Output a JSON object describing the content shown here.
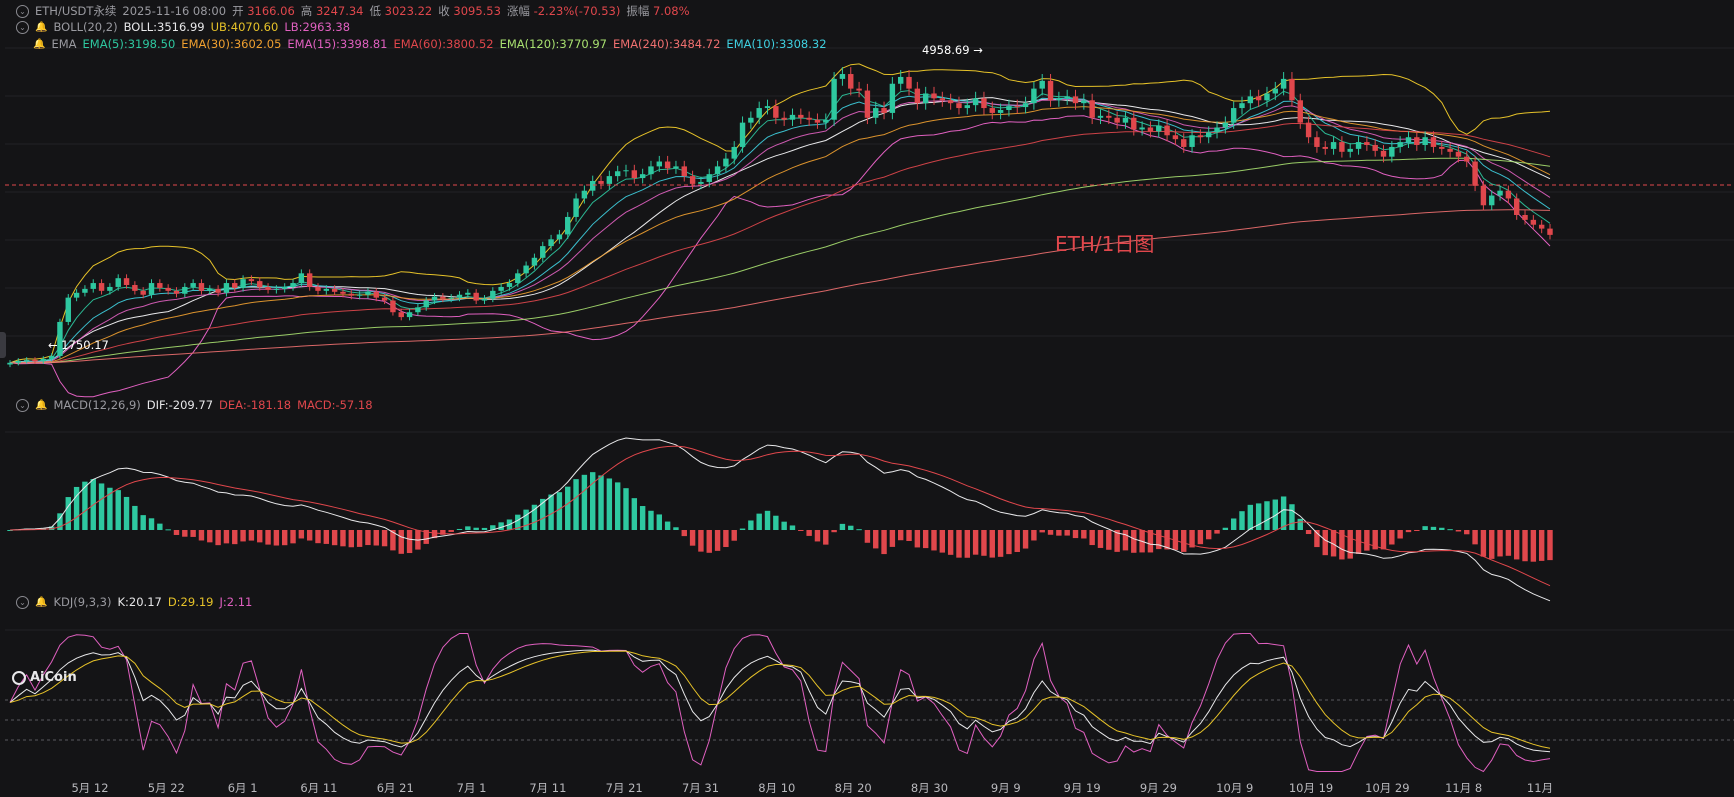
{
  "header": {
    "symbol": "ETH/USDT永续",
    "datetime": "2025-11-16 08:00",
    "open_label": "开",
    "open": "3166.06",
    "high_label": "高",
    "high": "3247.34",
    "low_label": "低",
    "low": "3023.22",
    "close_label": "收",
    "close": "3095.53",
    "change_label": "涨幅",
    "change": "-2.23%(-70.53)",
    "amplitude_label": "振幅",
    "amplitude": "7.08%"
  },
  "boll": {
    "name": "BOLL(20,2)",
    "mid": "BOLL:3516.99",
    "ub": "UB:4070.60",
    "lb": "LB:2963.38"
  },
  "ema": {
    "name": "EMA",
    "items": [
      "EMA(5):3198.50",
      "EMA(30):3602.05",
      "EMA(15):3398.81",
      "EMA(60):3800.52",
      "EMA(120):3770.97",
      "EMA(240):3484.72",
      "EMA(10):3308.32"
    ]
  },
  "macd": {
    "name": "MACD(12,26,9)",
    "dif": "DIF:-209.77",
    "dea": "DEA:-181.18",
    "macd": "MACD:-57.18"
  },
  "kdj": {
    "name": "KDJ(9,3,3)",
    "k": "K:20.17",
    "d": "D:29.19",
    "j": "J:2.11"
  },
  "annotations": {
    "high": "4958.69",
    "low": "1750.17",
    "watermark": "ETH/1日图"
  },
  "logo": "AiCoin",
  "colors": {
    "up": "#2ec8a0",
    "down": "#e0474c",
    "background": "#141416"
  },
  "chart_data": {
    "type": "candlestick",
    "title": "ETH/USDT永续",
    "x_ticks": [
      "5月 12",
      "5月 22",
      "6月 1",
      "6月 11",
      "6月 21",
      "7月 1",
      "7月 11",
      "7月 21",
      "7月 31",
      "8月 10",
      "8月 20",
      "8月 30",
      "9月 9",
      "9月 19",
      "9月 29",
      "10月 9",
      "10月 19",
      "10月 29",
      "11月 8",
      "11月"
    ],
    "close_series": [
      1780,
      1800,
      1810,
      1795,
      1820,
      1850,
      2200,
      2450,
      2500,
      2540,
      2600,
      2520,
      2560,
      2650,
      2580,
      2520,
      2480,
      2600,
      2550,
      2520,
      2490,
      2560,
      2600,
      2520,
      2540,
      2500,
      2600,
      2550,
      2640,
      2620,
      2560,
      2530,
      2540,
      2560,
      2600,
      2700,
      2560,
      2520,
      2540,
      2510,
      2490,
      2470,
      2480,
      2510,
      2450,
      2420,
      2300,
      2250,
      2300,
      2350,
      2420,
      2460,
      2440,
      2450,
      2480,
      2500,
      2420,
      2440,
      2520,
      2560,
      2600,
      2700,
      2780,
      2860,
      2980,
      3050,
      3100,
      3280,
      3470,
      3550,
      3650,
      3620,
      3700,
      3750,
      3760,
      3680,
      3720,
      3800,
      3850,
      3780,
      3800,
      3700,
      3620,
      3640,
      3720,
      3800,
      3880,
      4000,
      4250,
      4300,
      4400,
      4420,
      4300,
      4280,
      4330,
      4300,
      4280,
      4250,
      4280,
      4700,
      4750,
      4600,
      4580,
      4300,
      4400,
      4350,
      4650,
      4720,
      4600,
      4450,
      4550,
      4500,
      4480,
      4450,
      4400,
      4430,
      4500,
      4400,
      4350,
      4380,
      4420,
      4410,
      4450,
      4600,
      4680,
      4480,
      4500,
      4520,
      4450,
      4480,
      4300,
      4320,
      4300,
      4250,
      4300,
      4180,
      4200,
      4160,
      4220,
      4120,
      4080,
      4000,
      4120,
      4100,
      4150,
      4200,
      4250,
      4400,
      4450,
      4520,
      4480,
      4550,
      4600,
      4700,
      4480,
      4250,
      4100,
      4000,
      3980,
      4050,
      3950,
      3980,
      4050,
      4020,
      3960,
      3900,
      4000,
      4050,
      4100,
      4020,
      4100,
      4000,
      3980,
      3950,
      3900,
      3850,
      3600,
      3400,
      3500,
      3550,
      3470,
      3300,
      3250,
      3200,
      3160,
      3095.53
    ],
    "y_range": [
      1500,
      5100
    ],
    "macd_dif_last": -209.77,
    "macd_dea_last": -181.18,
    "macd_hist_last": -57.18,
    "kdj_last": {
      "K": 20.17,
      "D": 29.19,
      "J": 2.11
    }
  }
}
